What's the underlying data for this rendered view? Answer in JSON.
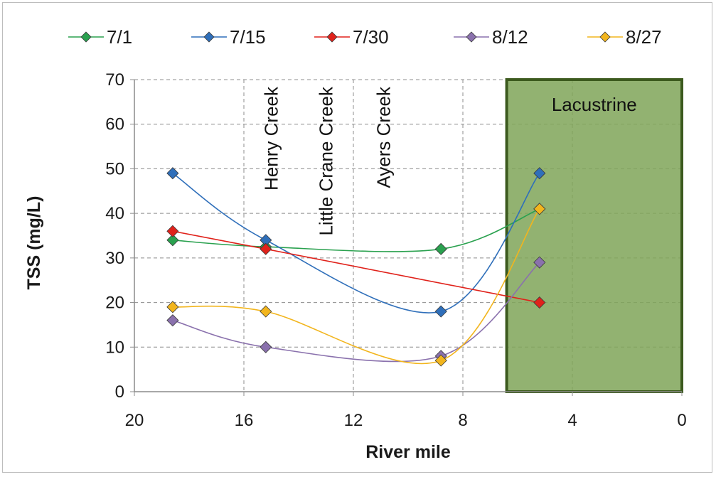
{
  "chart_data": {
    "type": "line",
    "title": "",
    "xlabel": "River mile",
    "ylabel": "TSS (mg/L)",
    "xlim": [
      20,
      0
    ],
    "ylim": [
      0,
      70
    ],
    "x_ticks": [
      20,
      16,
      12,
      8,
      4,
      0
    ],
    "y_ticks": [
      0,
      10,
      20,
      30,
      40,
      50,
      60,
      70
    ],
    "grid": true,
    "legend_position": "top",
    "smoothed": true,
    "series": [
      {
        "name": "7/1",
        "color": "#2aa14f",
        "marker": "diamond",
        "x": [
          18.6,
          15.2,
          8.8,
          5.2
        ],
        "y": [
          34,
          32.5,
          32,
          41
        ],
        "smooth": true
      },
      {
        "name": "7/15",
        "color": "#2f6fba",
        "marker": "diamond",
        "x": [
          18.6,
          15.2,
          8.8,
          5.2
        ],
        "y": [
          49,
          34,
          18,
          49
        ],
        "smooth": true
      },
      {
        "name": "7/30",
        "color": "#e0221b",
        "marker": "diamond",
        "x": [
          18.6,
          15.2,
          5.2
        ],
        "y": [
          36,
          32,
          20
        ],
        "smooth": false
      },
      {
        "name": "8/12",
        "color": "#8a71ad",
        "marker": "diamond",
        "x": [
          18.6,
          15.2,
          8.8,
          5.2
        ],
        "y": [
          16,
          10,
          8,
          29
        ],
        "smooth": true
      },
      {
        "name": "8/27",
        "color": "#f2b51d",
        "marker": "diamond",
        "x": [
          18.6,
          15.2,
          8.8,
          5.2
        ],
        "y": [
          19,
          18,
          7,
          41
        ],
        "smooth": true
      }
    ],
    "annotations": {
      "tributaries": [
        {
          "label": "Henry Creek",
          "x": 15.0
        },
        {
          "label": "Little Crane Creek",
          "x": 13.0
        },
        {
          "label": "Ayers Creek",
          "x": 10.9
        }
      ],
      "region": {
        "label": "Lacustrine",
        "x_from": 6.4,
        "x_to": 0,
        "fill": "#7fa558",
        "border": "#3c5a1e"
      }
    }
  }
}
